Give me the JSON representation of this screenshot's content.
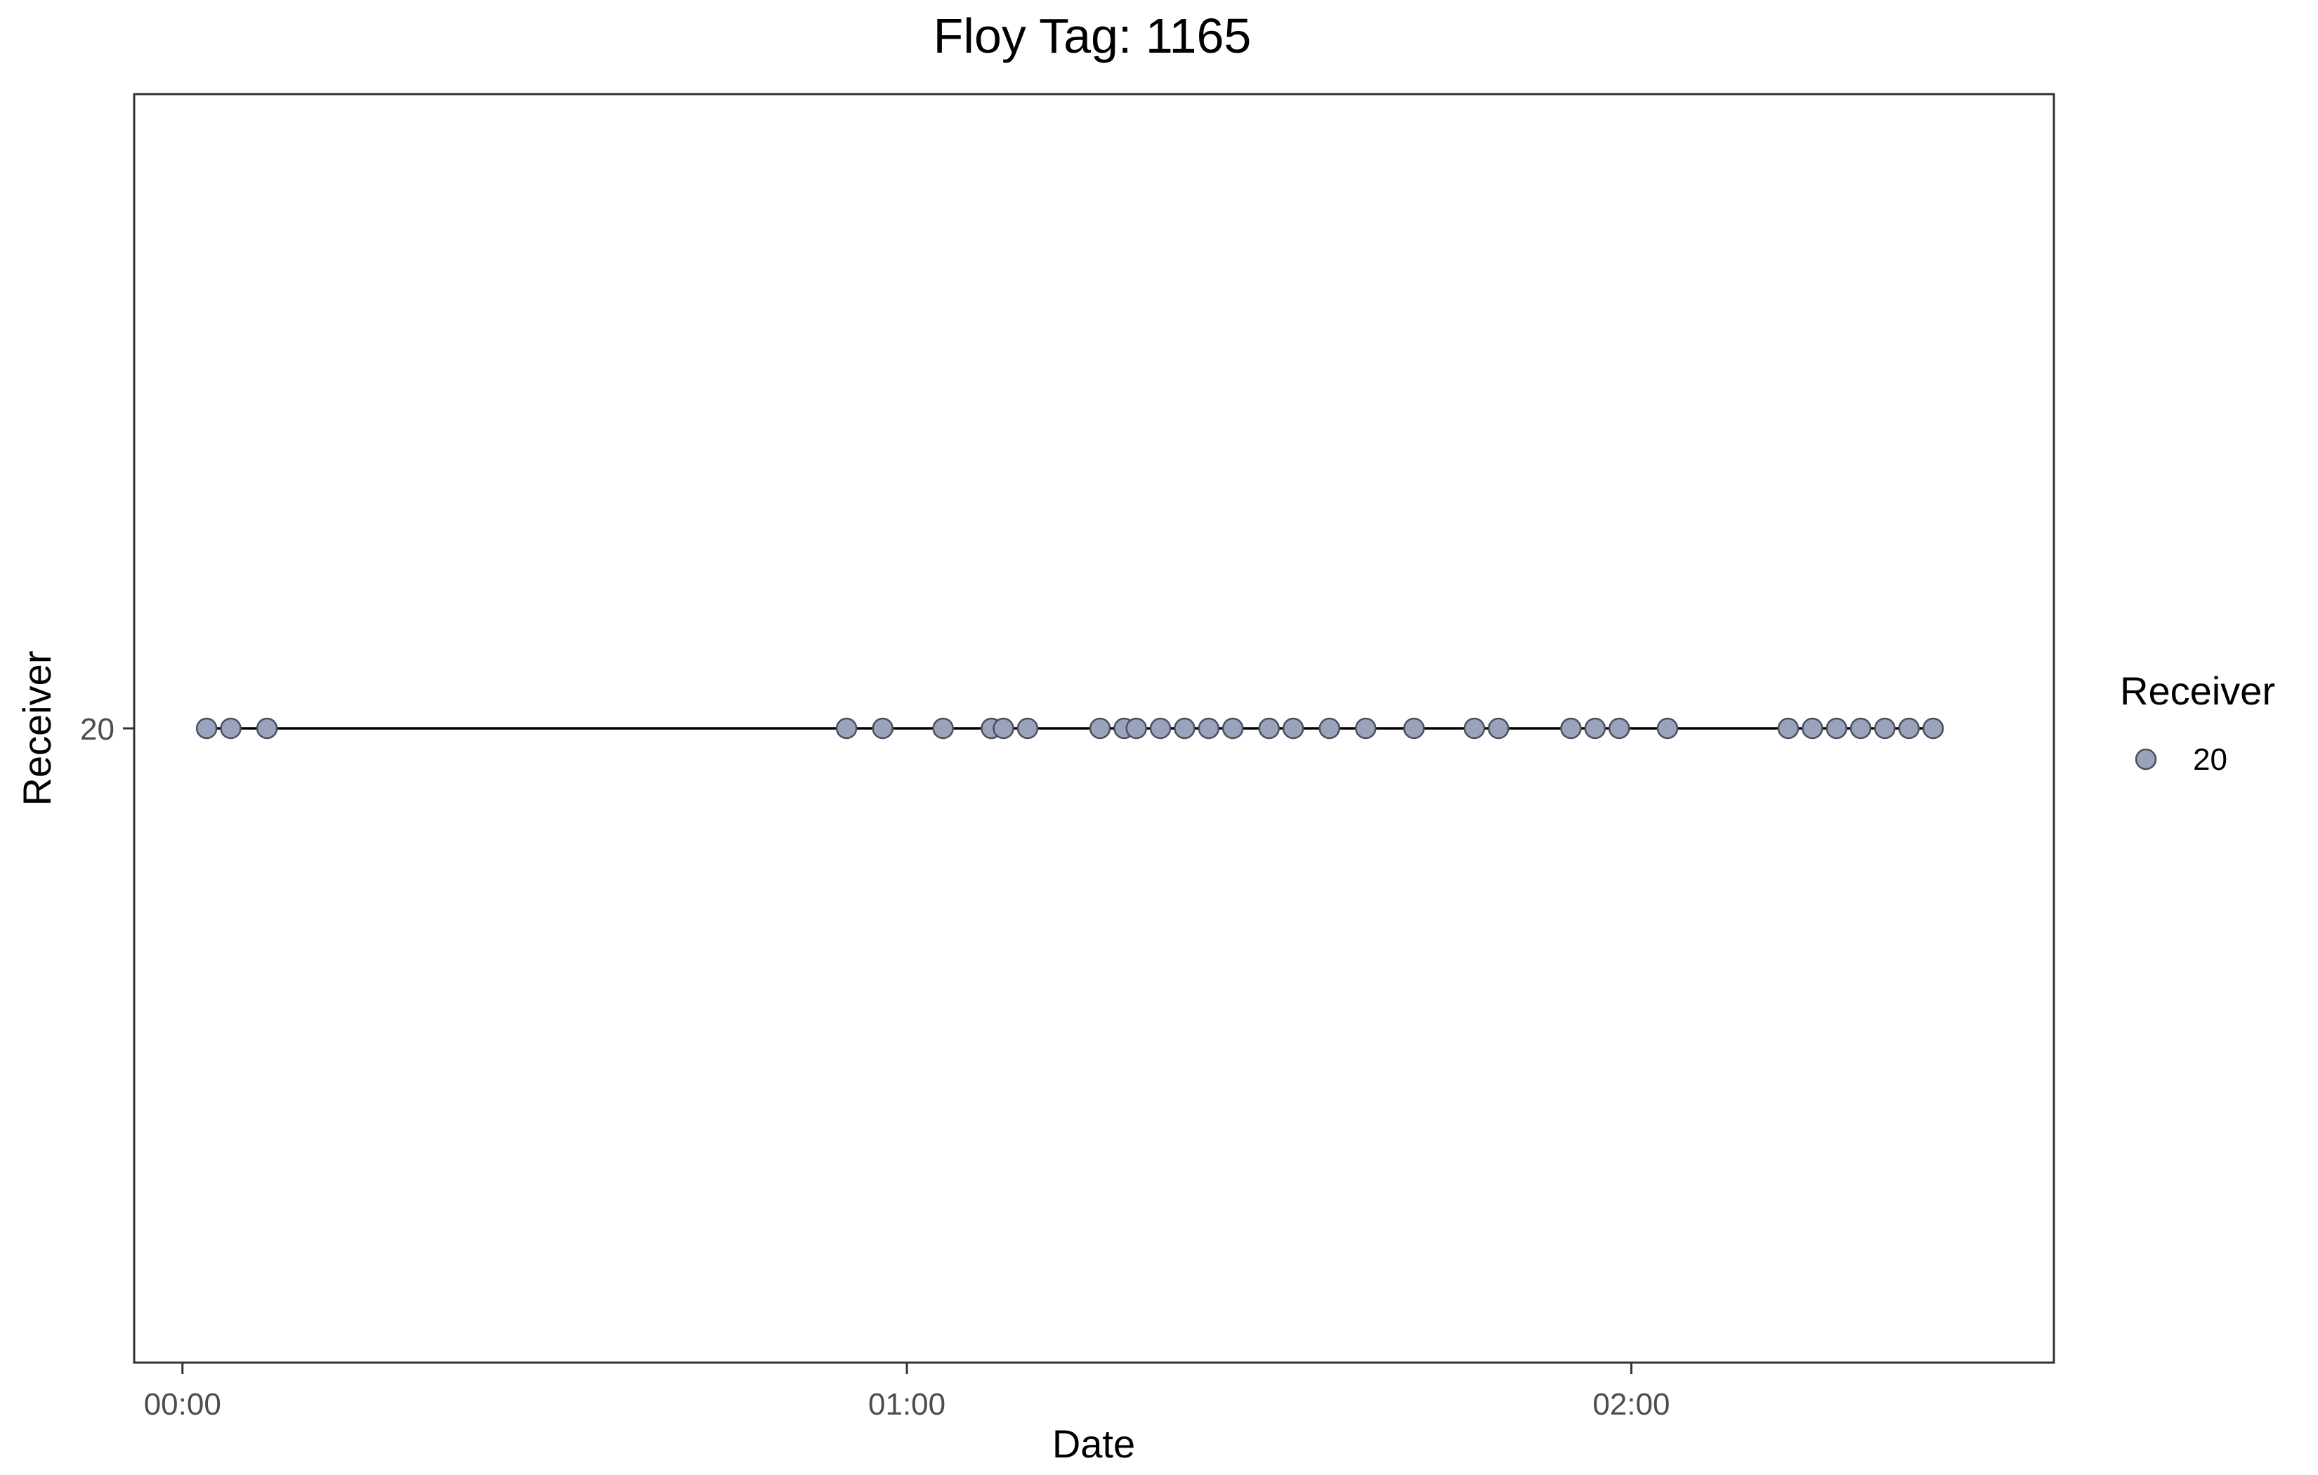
{
  "colors": {
    "point_fill": "#9aa3bb",
    "point_stroke": "#4a4f5e",
    "line": "#000000",
    "panel_border": "#333333",
    "axis_text": "#4d4d4d",
    "title_text": "#000000"
  },
  "chart_data": {
    "type": "scatter",
    "title": "Floy Tag: 1165",
    "xlabel": "Date",
    "ylabel": "Receiver",
    "x_unit": "time (hh:mm)",
    "xlim": [
      "23:56",
      "02:35"
    ],
    "x_ticks": [
      "00:00",
      "01:00",
      "02:00"
    ],
    "y_ticks": [
      "20"
    ],
    "grid": false,
    "legend": {
      "title": "Receiver",
      "position": "right",
      "entries": [
        "20"
      ]
    },
    "series": [
      {
        "name": "20",
        "y": "20",
        "connect_line": true,
        "x": [
          "00:02",
          "00:04",
          "00:07",
          "00:55",
          "00:58",
          "01:03",
          "01:07",
          "01:08",
          "01:10",
          "01:16",
          "01:18",
          "01:19",
          "01:21",
          "01:23",
          "01:25",
          "01:27",
          "01:30",
          "01:32",
          "01:35",
          "01:38",
          "01:42",
          "01:47",
          "01:49",
          "01:55",
          "01:57",
          "01:59",
          "02:03",
          "02:13",
          "02:15",
          "02:17",
          "02:19",
          "02:21",
          "02:23",
          "02:25"
        ]
      }
    ]
  }
}
